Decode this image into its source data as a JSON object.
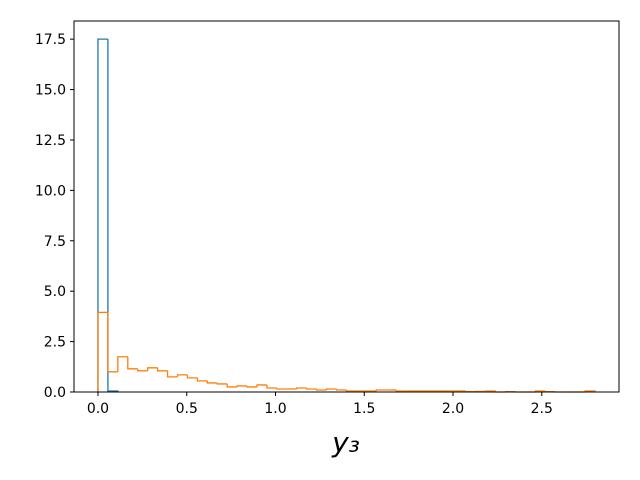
{
  "chart_data": {
    "type": "histogram",
    "xlabel": "y₃",
    "series": [
      {
        "color": "#1f77b4",
        "bins": [
          0,
          0.056,
          0.112
        ],
        "values": [
          17.5,
          0.05
        ]
      },
      {
        "color": "#ff7f0e",
        "bins": [
          0,
          0.056,
          0.112,
          0.168,
          0.224,
          0.28,
          0.336,
          0.392,
          0.448,
          0.504,
          0.56,
          0.616,
          0.672,
          0.728,
          0.784,
          0.84,
          0.896,
          0.952,
          1.008,
          1.064,
          1.12,
          1.176,
          1.232,
          1.288,
          1.344,
          1.4,
          1.456,
          1.512,
          1.568,
          1.624,
          1.68,
          1.736,
          1.792,
          1.848,
          1.904,
          1.96,
          2.016,
          2.072,
          2.128,
          2.184,
          2.24,
          2.296,
          2.352,
          2.408,
          2.464,
          2.52,
          2.576,
          2.632,
          2.688,
          2.744,
          2.8
        ],
        "values": [
          3.95,
          1.0,
          1.75,
          1.15,
          1.05,
          1.2,
          1.05,
          0.75,
          0.85,
          0.7,
          0.55,
          0.45,
          0.4,
          0.25,
          0.3,
          0.25,
          0.35,
          0.2,
          0.15,
          0.15,
          0.2,
          0.15,
          0.1,
          0.15,
          0.1,
          0.05,
          0.05,
          0.05,
          0.1,
          0.1,
          0.05,
          0.05,
          0.05,
          0.05,
          0.05,
          0.05,
          0.05,
          0.02,
          0.03,
          0.05,
          0,
          0.02,
          0,
          0,
          0.05,
          0.02,
          0,
          0,
          0,
          0.05
        ]
      }
    ],
    "xlim": [
      -0.135,
      2.935
    ],
    "ylim": [
      0,
      18.4
    ],
    "xticks": [
      {
        "value": 0,
        "label": "0.0"
      },
      {
        "value": 0.5,
        "label": "0.5"
      },
      {
        "value": 1,
        "label": "1.0"
      },
      {
        "value": 1.5,
        "label": "1.5"
      },
      {
        "value": 2,
        "label": "2.0"
      },
      {
        "value": 2.5,
        "label": "2.5"
      }
    ],
    "yticks": [
      {
        "value": 0,
        "label": "0.0"
      },
      {
        "value": 2.5,
        "label": "2.5"
      },
      {
        "value": 5,
        "label": "5.0"
      },
      {
        "value": 7.5,
        "label": "7.5"
      },
      {
        "value": 10,
        "label": "10.0"
      },
      {
        "value": 12.5,
        "label": "12.5"
      },
      {
        "value": 15,
        "label": "15.0"
      },
      {
        "value": 17.5,
        "label": "17.5"
      }
    ]
  }
}
